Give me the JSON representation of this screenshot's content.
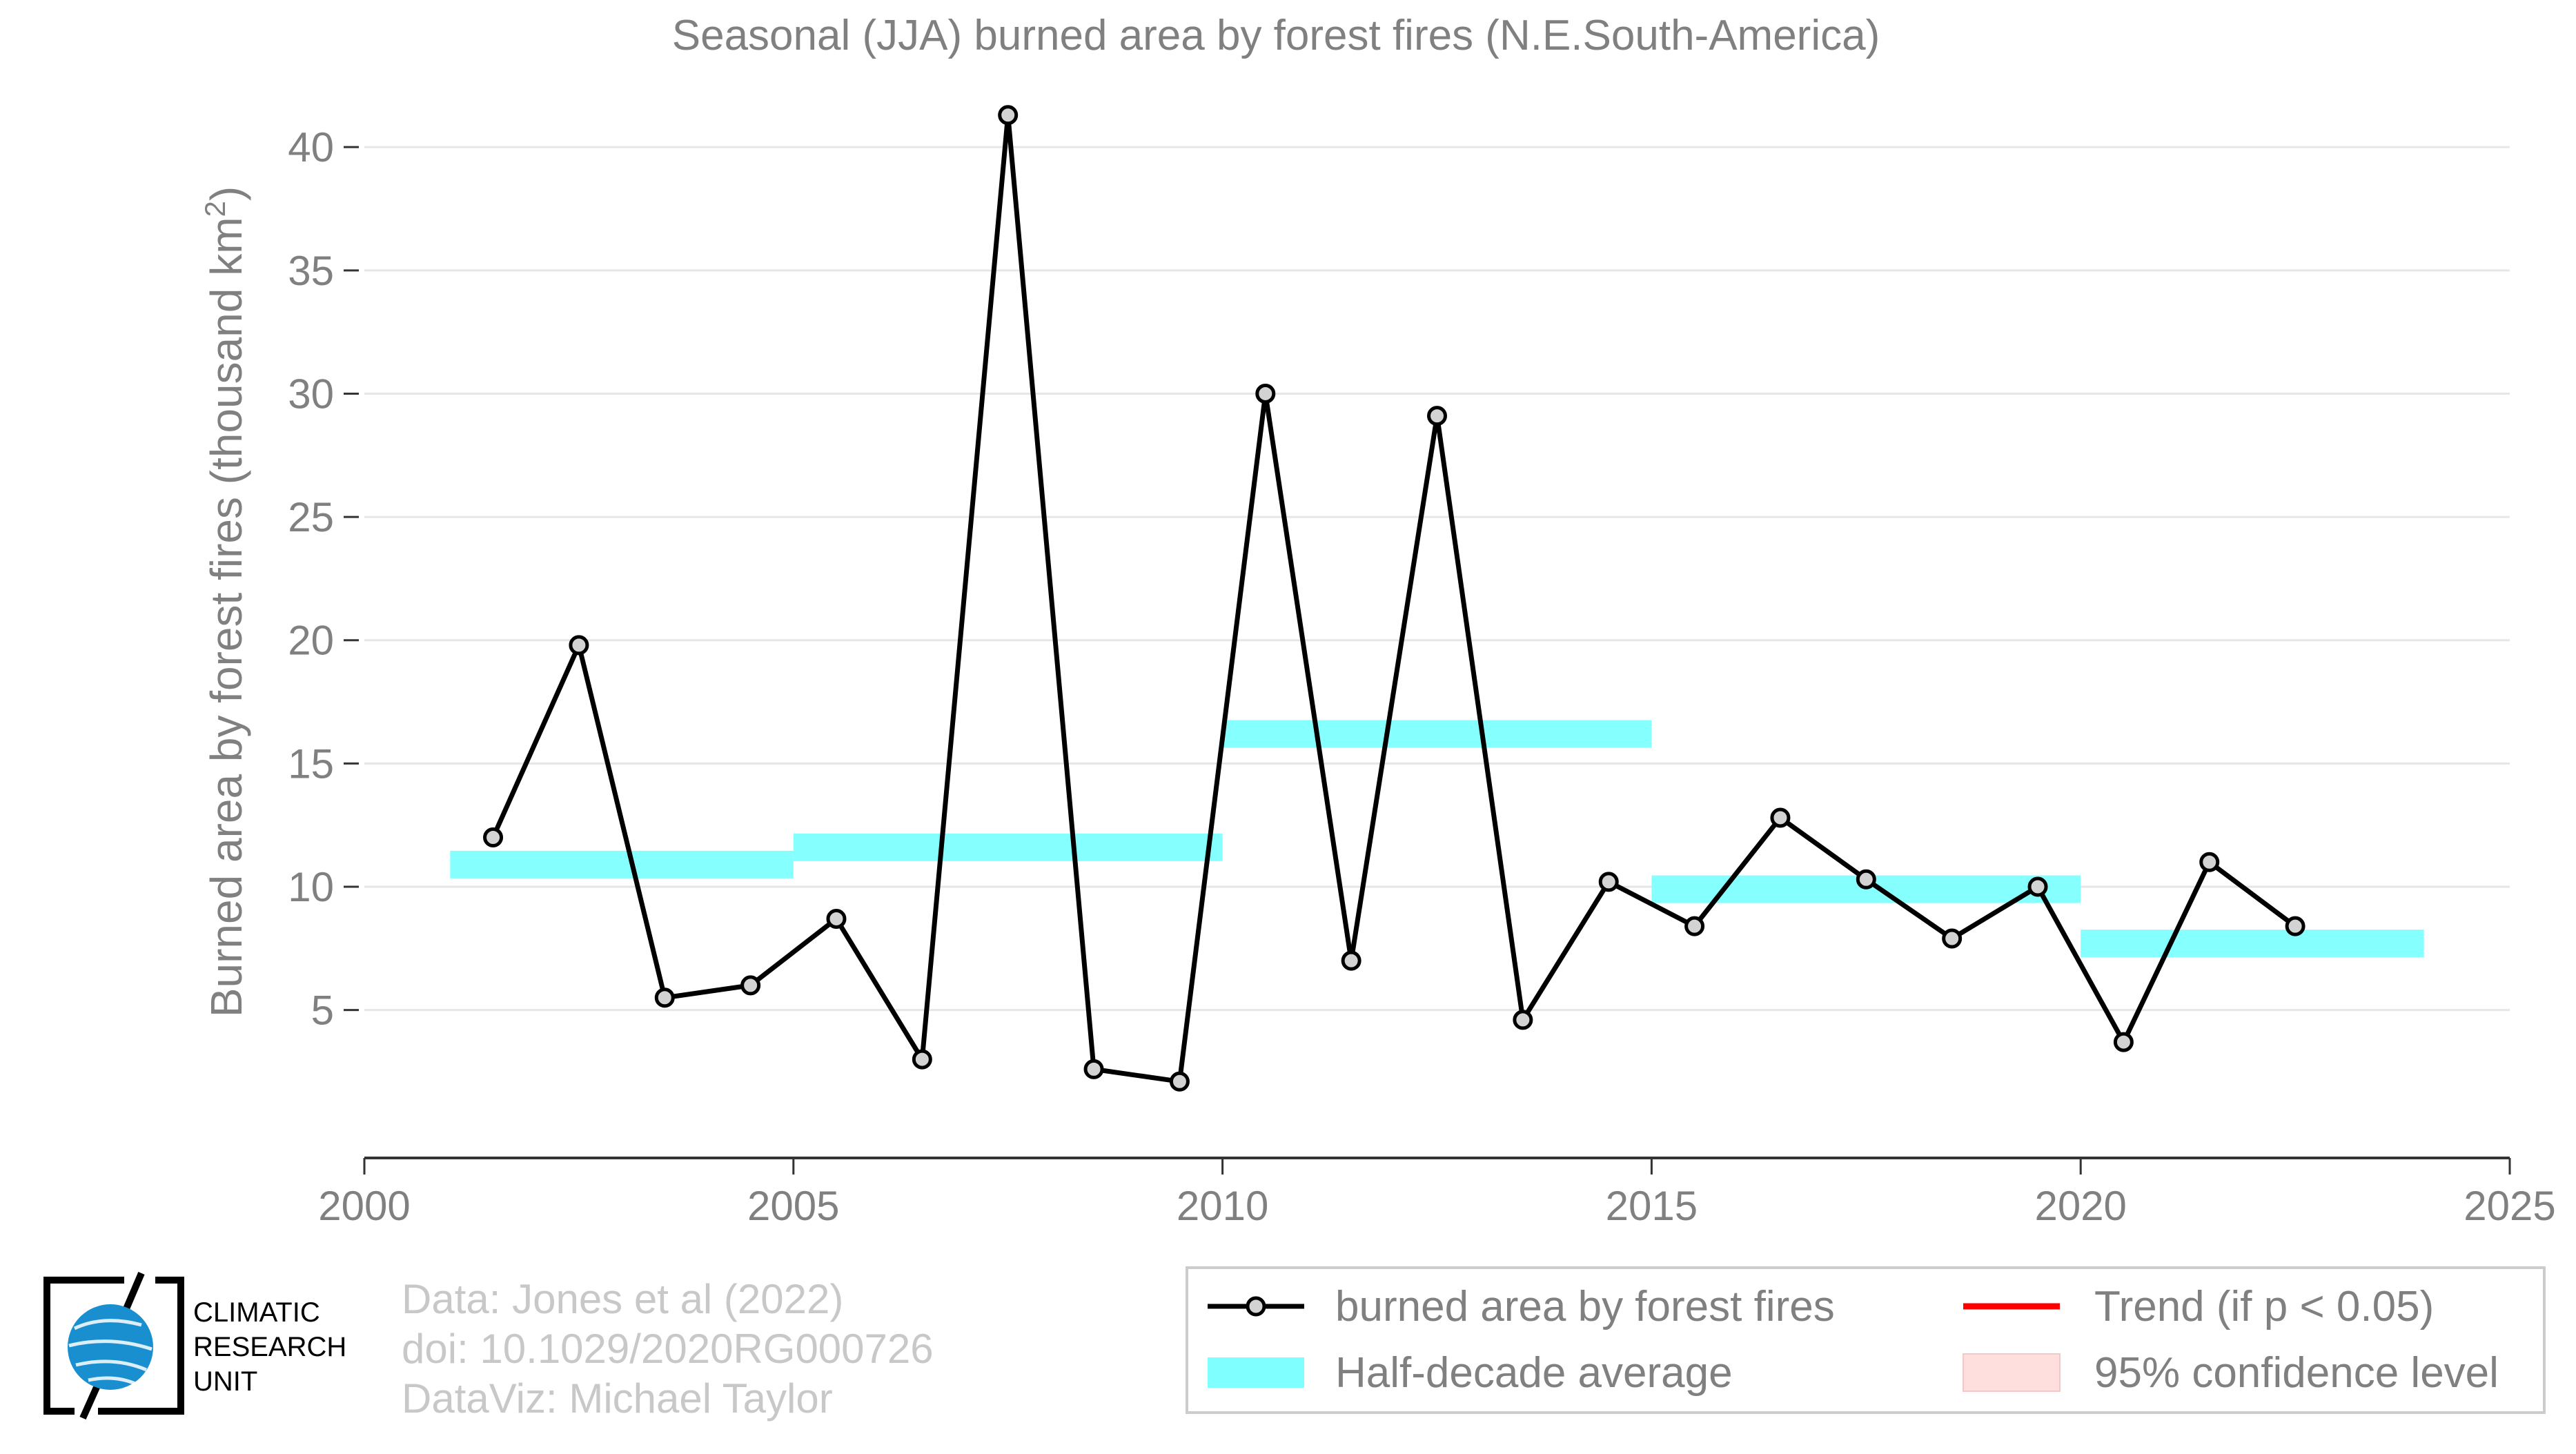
{
  "chart_data": {
    "type": "line",
    "title": "Seasonal (JJA) burned area by forest fires (N.E.South-America)",
    "ylabel": "Burned area by forest fires (thousand km",
    "ylabel_sup": "2",
    "ylabel_end": ")",
    "xlabel": "",
    "xlim": [
      2000,
      2025
    ],
    "ylim": [
      -1,
      43
    ],
    "x_ticks": [
      2000,
      2005,
      2010,
      2015,
      2020,
      2025
    ],
    "y_ticks": [
      5,
      10,
      15,
      20,
      25,
      30,
      35,
      40
    ],
    "grid": "horizontal",
    "series": [
      {
        "name": "burned area by forest fires",
        "type": "line-marker",
        "color": "#000000",
        "marker_fill": "#d3d3d3",
        "x": [
          2001.5,
          2002.5,
          2003.5,
          2004.5,
          2005.5,
          2006.5,
          2007.5,
          2008.5,
          2009.5,
          2010.5,
          2011.5,
          2012.5,
          2013.5,
          2014.5,
          2015.5,
          2016.5,
          2017.5,
          2018.5,
          2019.5,
          2020.5,
          2021.5,
          2022.5
        ],
        "values": [
          12.0,
          19.8,
          5.5,
          6.0,
          8.7,
          3.0,
          41.3,
          2.6,
          2.1,
          30.0,
          7.0,
          29.1,
          4.6,
          10.2,
          8.4,
          12.8,
          10.3,
          7.9,
          10.0,
          3.7,
          11.0,
          8.4
        ]
      },
      {
        "name": "Half-decade average",
        "type": "step-bars",
        "color": "#7fffff",
        "segments": [
          {
            "x0": 2001,
            "x1": 2005,
            "value": 10.9
          },
          {
            "x0": 2005,
            "x1": 2010,
            "value": 11.6
          },
          {
            "x0": 2010,
            "x1": 2015,
            "value": 16.2
          },
          {
            "x0": 2015,
            "x1": 2020,
            "value": 9.9
          },
          {
            "x0": 2020,
            "x1": 2024,
            "value": 7.7
          }
        ]
      }
    ],
    "legend": {
      "placement": "bottom-right",
      "items": [
        {
          "label": "burned area by forest fires",
          "kind": "line-marker",
          "color": "#000000"
        },
        {
          "label": "Trend (if p < 0.05)",
          "kind": "line",
          "color": "#ff0000"
        },
        {
          "label": "Half-decade average",
          "kind": "band",
          "color": "#7fffff"
        },
        {
          "label": "95% confidence level",
          "kind": "band",
          "color": "#ffdede"
        }
      ]
    }
  },
  "credits": {
    "line1": "Data: Jones et al (2022)",
    "line2": "doi: 10.1029/2020RG000726",
    "line3": "DataViz: Michael Taylor"
  },
  "logo": {
    "line1": "CLIMATIC",
    "line2": "RESEARCH",
    "line3": "UNIT"
  },
  "colors": {
    "text_gray": "#808080",
    "credit_gray": "#c8c8c8",
    "grid": "#e6e6e6"
  }
}
